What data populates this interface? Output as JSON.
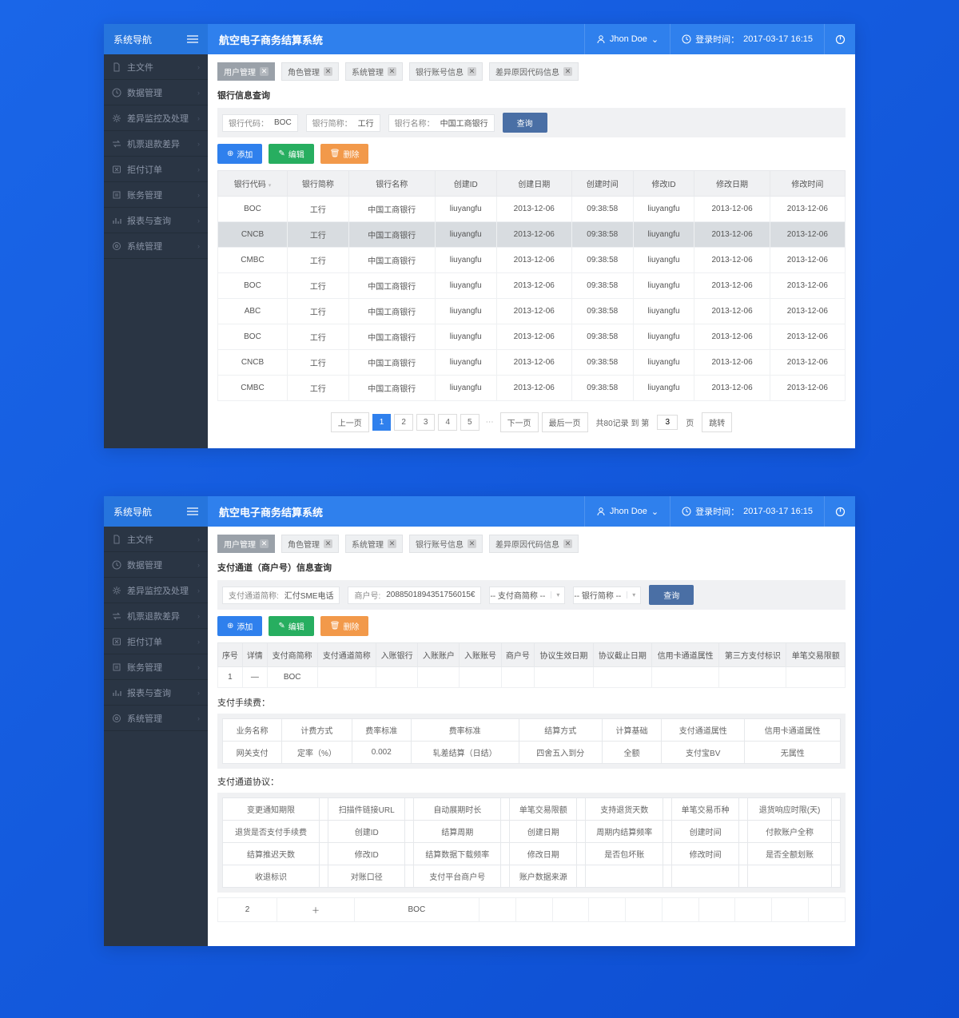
{
  "colors": {
    "accent": "#2f80ed",
    "sidebar": "#2a3544",
    "bg": "#1a66e8"
  },
  "header": {
    "nav_title": "系统导航",
    "app_title": "航空电子商务结算系统",
    "user": "Jhon Doe",
    "login_label": "登录时间：",
    "login_time": "2017-03-17  16:15"
  },
  "sidebar": [
    {
      "icon": "file",
      "label": "主文件"
    },
    {
      "icon": "clock",
      "label": "数据管理"
    },
    {
      "icon": "gear",
      "label": "差异监控及处理"
    },
    {
      "icon": "swap",
      "label": "机票退款差异"
    },
    {
      "icon": "reject",
      "label": "拒付订单"
    },
    {
      "icon": "ledger",
      "label": "账务管理"
    },
    {
      "icon": "chart",
      "label": "报表与查询"
    },
    {
      "icon": "cog",
      "label": "系统管理"
    }
  ],
  "tabs": [
    {
      "label": "用户管理",
      "active": true
    },
    {
      "label": "角色管理"
    },
    {
      "label": "系统管理"
    },
    {
      "label": "银行账号信息"
    },
    {
      "label": "差异原因代码信息"
    }
  ],
  "panel1": {
    "section_title": "银行信息查询",
    "filters": [
      {
        "label": "银行代码：",
        "value": "BOC"
      },
      {
        "label": "银行简称：",
        "value": "工行"
      },
      {
        "label": "银行名称：",
        "value": "中国工商银行"
      }
    ],
    "query": "查询",
    "actions": {
      "add": "添加",
      "edit": "编辑",
      "del": "删除"
    },
    "columns": [
      "银行代码",
      "银行简称",
      "银行名称",
      "创建ID",
      "创建日期",
      "创建时间",
      "修改ID",
      "修改日期",
      "修改时间"
    ],
    "rows": [
      [
        "BOC",
        "工行",
        "中国工商银行",
        "liuyangfu",
        "2013-12-06",
        "09:38:58",
        "liuyangfu",
        "2013-12-06",
        "2013-12-06"
      ],
      [
        "CNCB",
        "工行",
        "中国工商银行",
        "liuyangfu",
        "2013-12-06",
        "09:38:58",
        "liuyangfu",
        "2013-12-06",
        "2013-12-06"
      ],
      [
        "CMBC",
        "工行",
        "中国工商银行",
        "liuyangfu",
        "2013-12-06",
        "09:38:58",
        "liuyangfu",
        "2013-12-06",
        "2013-12-06"
      ],
      [
        "BOC",
        "工行",
        "中国工商银行",
        "liuyangfu",
        "2013-12-06",
        "09:38:58",
        "liuyangfu",
        "2013-12-06",
        "2013-12-06"
      ],
      [
        "ABC",
        "工行",
        "中国工商银行",
        "liuyangfu",
        "2013-12-06",
        "09:38:58",
        "liuyangfu",
        "2013-12-06",
        "2013-12-06"
      ],
      [
        "BOC",
        "工行",
        "中国工商银行",
        "liuyangfu",
        "2013-12-06",
        "09:38:58",
        "liuyangfu",
        "2013-12-06",
        "2013-12-06"
      ],
      [
        "CNCB",
        "工行",
        "中国工商银行",
        "liuyangfu",
        "2013-12-06",
        "09:38:58",
        "liuyangfu",
        "2013-12-06",
        "2013-12-06"
      ],
      [
        "CMBC",
        "工行",
        "中国工商银行",
        "liuyangfu",
        "2013-12-06",
        "09:38:58",
        "liuyangfu",
        "2013-12-06",
        "2013-12-06"
      ]
    ],
    "selected_row": 1,
    "pager": {
      "prev": "上一页",
      "next": "下一页",
      "last": "最后一页",
      "pages": [
        "1",
        "2",
        "3",
        "4",
        "5"
      ],
      "current": 0,
      "total_prefix": "共80记录  到  第",
      "total_suffix": "页",
      "goto_page": "3",
      "jump": "跳转"
    }
  },
  "panel2": {
    "section_title": "支付通道（商户号）信息查询",
    "filters": [
      {
        "label": "支付通道简称:",
        "value": "汇付SME电话"
      },
      {
        "label": "商户号:",
        "value": "2088501894351756015€"
      },
      {
        "label": "",
        "value": "-- 支付商简称 --",
        "dropdown": true
      },
      {
        "label": "",
        "value": "-- 银行简称 --",
        "dropdown": true
      }
    ],
    "query": "查询",
    "actions": {
      "add": "添加",
      "edit": "编辑",
      "del": "删除"
    },
    "columns": [
      "序号",
      "详情",
      "支付商简称",
      "支付通道简称",
      "入账银行",
      "入账账户",
      "入账账号",
      "商户号",
      "协议生效日期",
      "协议截止日期",
      "信用卡通道属性",
      "第三方支付标识",
      "单笔交易限额"
    ],
    "rows": [
      [
        "1",
        "—",
        "BOC",
        "",
        "",
        "",
        "",
        "",
        "",
        "",
        "",
        "",
        ""
      ]
    ],
    "fees": {
      "title": "支付手续费：",
      "header": [
        "业务名称",
        "计费方式",
        "费率标准",
        "费率标准",
        "结算方式",
        "计算基础",
        "支付通道属性",
        "信用卡通道属性"
      ],
      "row": [
        "网关支付",
        "定率（%）",
        "0.002",
        "轧差结算（日结）",
        "四舍五入到分",
        "全额",
        "支付宝BV",
        "无属性"
      ]
    },
    "agreement": {
      "title": "支付通道协议：",
      "cells": [
        [
          "变更通知期限",
          "",
          "扫描件链接URL",
          "",
          "自动展期时长",
          "",
          "单笔交易限额",
          "",
          "支持退货天数",
          "",
          "单笔交易币种",
          "",
          "退货响应时限(天)",
          ""
        ],
        [
          "退货是否支付手续费",
          "",
          "创建ID",
          "",
          "结算周期",
          "",
          "创建日期",
          "",
          "周期内结算频率",
          "",
          "创建时间",
          "",
          "付款账户全称",
          ""
        ],
        [
          "结算推迟天数",
          "",
          "修改ID",
          "",
          "结算数据下载频率",
          "",
          "修改日期",
          "",
          "是否包坏账",
          "",
          "修改时间",
          "",
          "是否全额划账",
          ""
        ],
        [
          "收退标识",
          "",
          "对账口径",
          "",
          "支付平台商户号",
          "",
          "账户数据来源",
          "",
          "",
          "",
          "",
          "",
          "",
          ""
        ]
      ]
    },
    "expand_row": [
      "2",
      "＋",
      "BOC",
      "",
      "",
      "",
      "",
      "",
      "",
      "",
      "",
      "",
      ""
    ]
  }
}
